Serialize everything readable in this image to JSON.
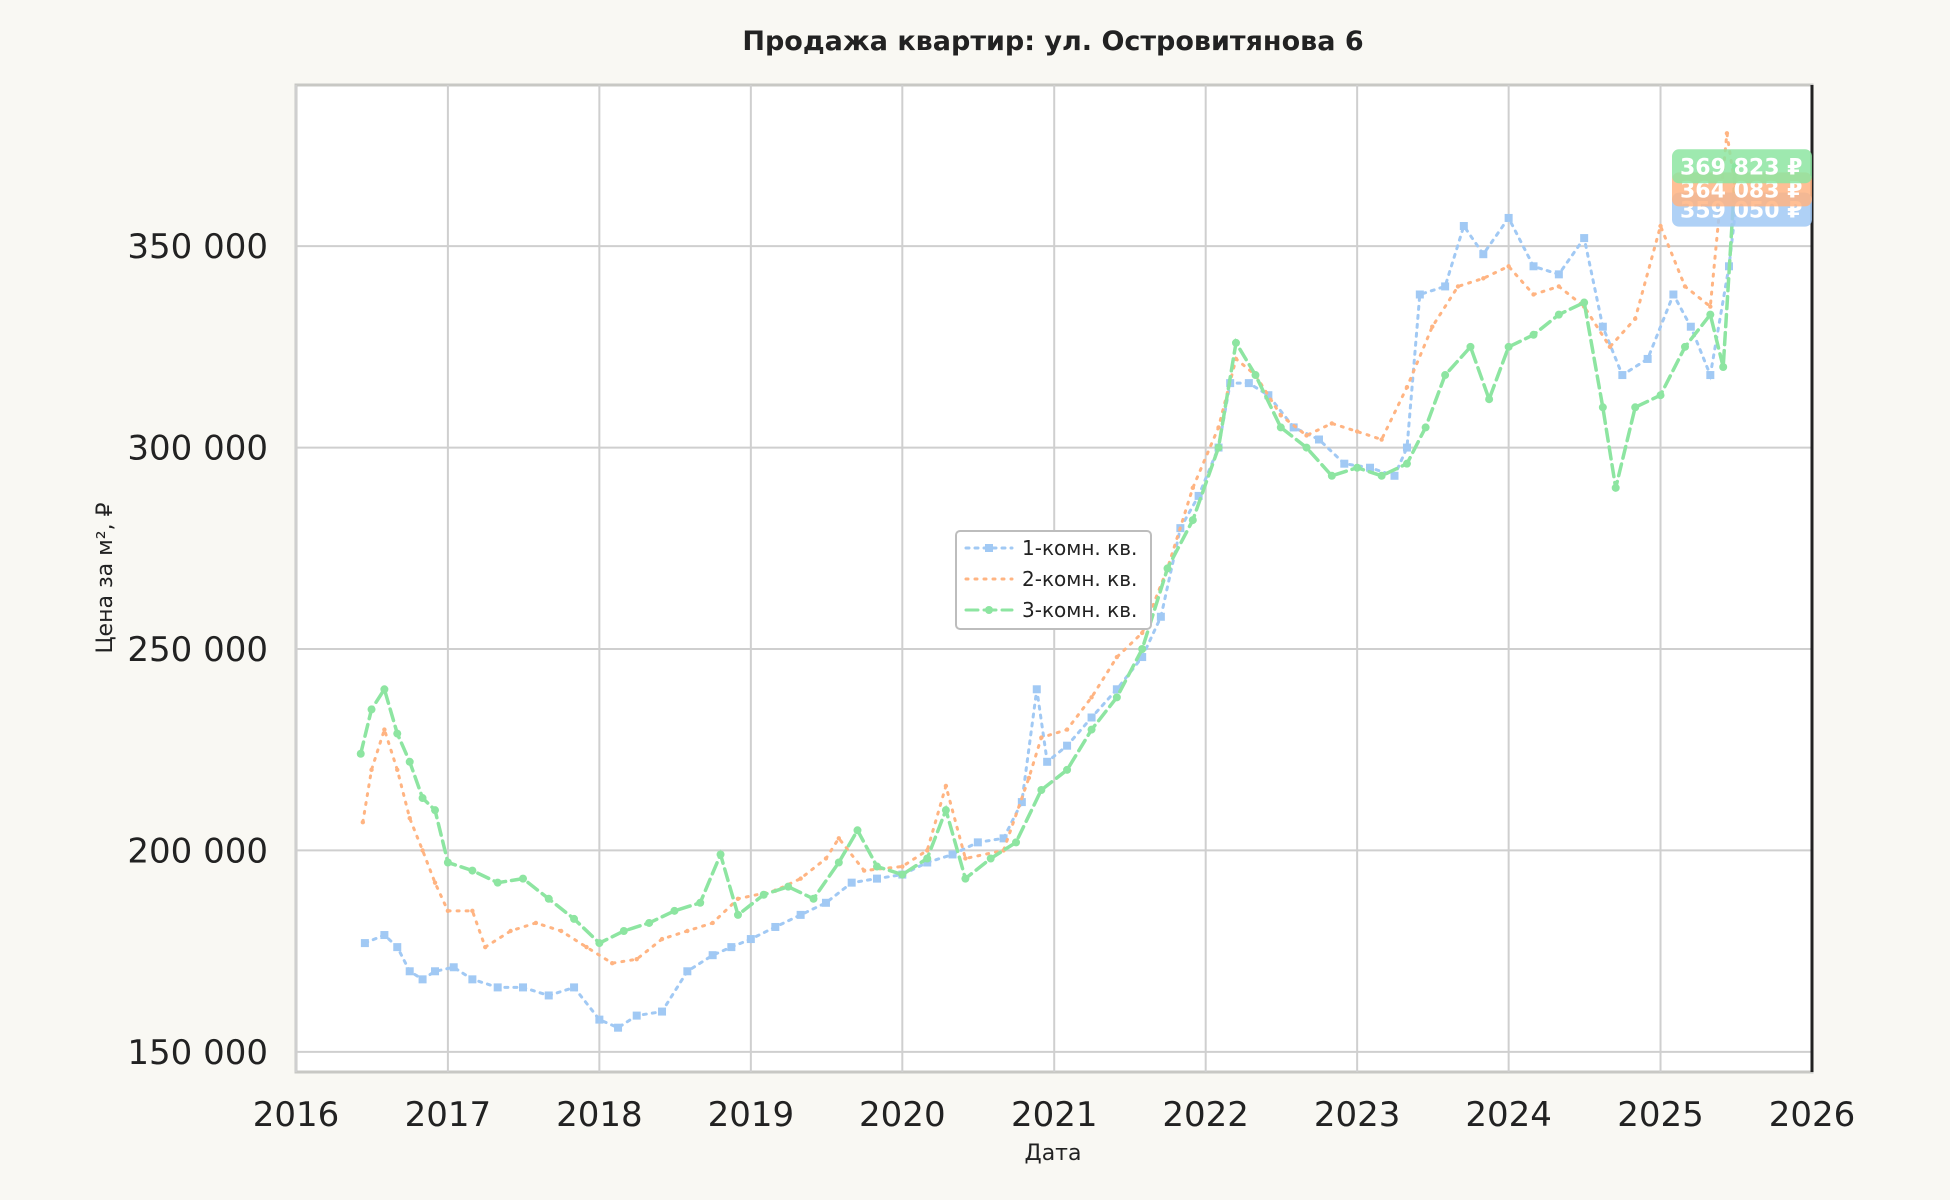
{
  "chart_data": {
    "type": "line",
    "title": "Продажа квартир: ул. Островитянова 6",
    "xlabel": "Дата",
    "ylabel": "Цена за м², ₽",
    "xlim": [
      "2016-01-01",
      "2026-01-01"
    ],
    "ylim": [
      145000,
      390000
    ],
    "x_ticks": [
      "2016",
      "2017",
      "2018",
      "2019",
      "2020",
      "2021",
      "2022",
      "2023",
      "2024",
      "2025",
      "2026"
    ],
    "y_ticks": [
      150000,
      200000,
      250000,
      300000,
      350000
    ],
    "y_tick_labels": [
      "150 000",
      "200 000",
      "250 000",
      "300 000",
      "350 000"
    ],
    "grid": true,
    "legend_position": "center",
    "series": [
      {
        "name": "1-комн. кв.",
        "color": "#a1c9f4",
        "style": "dotted-square",
        "end_label": "359 050 ₽",
        "points": [
          [
            "2016-06-15",
            177000
          ],
          [
            "2016-08-01",
            179000
          ],
          [
            "2016-09-01",
            176000
          ],
          [
            "2016-10-01",
            170000
          ],
          [
            "2016-11-01",
            168000
          ],
          [
            "2016-12-01",
            170000
          ],
          [
            "2017-01-15",
            171000
          ],
          [
            "2017-03-01",
            168000
          ],
          [
            "2017-05-01",
            166000
          ],
          [
            "2017-07-01",
            166000
          ],
          [
            "2017-09-01",
            164000
          ],
          [
            "2017-11-01",
            166000
          ],
          [
            "2018-01-01",
            158000
          ],
          [
            "2018-02-15",
            156000
          ],
          [
            "2018-04-01",
            159000
          ],
          [
            "2018-06-01",
            160000
          ],
          [
            "2018-08-01",
            170000
          ],
          [
            "2018-10-01",
            174000
          ],
          [
            "2018-11-15",
            176000
          ],
          [
            "2019-01-01",
            178000
          ],
          [
            "2019-03-01",
            181000
          ],
          [
            "2019-05-01",
            184000
          ],
          [
            "2019-07-01",
            187000
          ],
          [
            "2019-09-01",
            192000
          ],
          [
            "2019-11-01",
            193000
          ],
          [
            "2020-01-01",
            194000
          ],
          [
            "2020-03-01",
            197000
          ],
          [
            "2020-05-01",
            199000
          ],
          [
            "2020-07-01",
            202000
          ],
          [
            "2020-09-01",
            203000
          ],
          [
            "2020-10-15",
            212000
          ],
          [
            "2020-11-20",
            240000
          ],
          [
            "2020-12-15",
            222000
          ],
          [
            "2021-02-01",
            226000
          ],
          [
            "2021-04-01",
            233000
          ],
          [
            "2021-06-01",
            240000
          ],
          [
            "2021-08-01",
            248000
          ],
          [
            "2021-09-15",
            258000
          ],
          [
            "2021-11-01",
            280000
          ],
          [
            "2021-12-15",
            288000
          ],
          [
            "2022-02-01",
            300000
          ],
          [
            "2022-03-01",
            316000
          ],
          [
            "2022-04-15",
            316000
          ],
          [
            "2022-06-01",
            313000
          ],
          [
            "2022-08-01",
            305000
          ],
          [
            "2022-10-01",
            302000
          ],
          [
            "2022-12-01",
            296000
          ],
          [
            "2023-02-01",
            295000
          ],
          [
            "2023-04-01",
            293000
          ],
          [
            "2023-05-01",
            300000
          ],
          [
            "2023-06-01",
            338000
          ],
          [
            "2023-08-01",
            340000
          ],
          [
            "2023-09-15",
            355000
          ],
          [
            "2023-11-01",
            348000
          ],
          [
            "2024-01-01",
            357000
          ],
          [
            "2024-03-01",
            345000
          ],
          [
            "2024-05-01",
            343000
          ],
          [
            "2024-07-01",
            352000
          ],
          [
            "2024-08-15",
            330000
          ],
          [
            "2024-10-01",
            318000
          ],
          [
            "2024-12-01",
            322000
          ],
          [
            "2025-02-01",
            338000
          ],
          [
            "2025-03-15",
            330000
          ],
          [
            "2025-05-01",
            318000
          ],
          [
            "2025-06-15",
            345000
          ],
          [
            "2025-07-01",
            359050
          ]
        ]
      },
      {
        "name": "2-комн. кв.",
        "color": "#ffb482",
        "style": "dotted",
        "end_label": "364 083 ₽",
        "points": [
          [
            "2016-06-10",
            207000
          ],
          [
            "2016-07-01",
            220000
          ],
          [
            "2016-08-01",
            230000
          ],
          [
            "2016-09-01",
            220000
          ],
          [
            "2016-10-01",
            208000
          ],
          [
            "2016-11-01",
            200000
          ],
          [
            "2016-12-01",
            192000
          ],
          [
            "2017-01-01",
            185000
          ],
          [
            "2017-03-01",
            185000
          ],
          [
            "2017-04-01",
            176000
          ],
          [
            "2017-06-01",
            180000
          ],
          [
            "2017-08-01",
            182000
          ],
          [
            "2017-10-01",
            180000
          ],
          [
            "2017-12-01",
            176000
          ],
          [
            "2018-02-01",
            172000
          ],
          [
            "2018-04-01",
            173000
          ],
          [
            "2018-06-01",
            178000
          ],
          [
            "2018-08-01",
            180000
          ],
          [
            "2018-10-01",
            182000
          ],
          [
            "2018-12-01",
            188000
          ],
          [
            "2019-03-01",
            190000
          ],
          [
            "2019-05-01",
            193000
          ],
          [
            "2019-07-01",
            198000
          ],
          [
            "2019-08-01",
            203000
          ],
          [
            "2019-10-01",
            195000
          ],
          [
            "2020-01-01",
            196000
          ],
          [
            "2020-03-01",
            200000
          ],
          [
            "2020-04-15",
            216000
          ],
          [
            "2020-06-01",
            198000
          ],
          [
            "2020-09-01",
            200000
          ],
          [
            "2020-11-01",
            218000
          ],
          [
            "2020-12-01",
            228000
          ],
          [
            "2021-02-01",
            230000
          ],
          [
            "2021-04-01",
            238000
          ],
          [
            "2021-06-01",
            248000
          ],
          [
            "2021-08-01",
            254000
          ],
          [
            "2021-10-01",
            270000
          ],
          [
            "2021-12-01",
            290000
          ],
          [
            "2022-02-01",
            305000
          ],
          [
            "2022-03-15",
            322000
          ],
          [
            "2022-05-01",
            318000
          ],
          [
            "2022-07-01",
            308000
          ],
          [
            "2022-09-01",
            303000
          ],
          [
            "2022-11-01",
            306000
          ],
          [
            "2023-01-01",
            304000
          ],
          [
            "2023-03-01",
            302000
          ],
          [
            "2023-05-01",
            315000
          ],
          [
            "2023-07-01",
            330000
          ],
          [
            "2023-09-01",
            340000
          ],
          [
            "2023-11-01",
            342000
          ],
          [
            "2024-01-01",
            345000
          ],
          [
            "2024-03-01",
            338000
          ],
          [
            "2024-05-01",
            340000
          ],
          [
            "2024-07-01",
            335000
          ],
          [
            "2024-09-01",
            325000
          ],
          [
            "2024-11-01",
            332000
          ],
          [
            "2025-01-01",
            355000
          ],
          [
            "2025-03-01",
            340000
          ],
          [
            "2025-05-01",
            335000
          ],
          [
            "2025-06-10",
            378000
          ],
          [
            "2025-07-01",
            364083
          ]
        ]
      },
      {
        "name": "3-комн. кв.",
        "color": "#8de5a1",
        "style": "dashed-dot",
        "end_label": "369 823 ₽",
        "points": [
          [
            "2016-06-05",
            224000
          ],
          [
            "2016-07-01",
            235000
          ],
          [
            "2016-08-01",
            240000
          ],
          [
            "2016-09-01",
            229000
          ],
          [
            "2016-10-01",
            222000
          ],
          [
            "2016-11-01",
            213000
          ],
          [
            "2016-12-01",
            210000
          ],
          [
            "2017-01-01",
            197000
          ],
          [
            "2017-03-01",
            195000
          ],
          [
            "2017-05-01",
            192000
          ],
          [
            "2017-07-01",
            193000
          ],
          [
            "2017-09-01",
            188000
          ],
          [
            "2017-11-01",
            183000
          ],
          [
            "2018-01-01",
            177000
          ],
          [
            "2018-03-01",
            180000
          ],
          [
            "2018-05-01",
            182000
          ],
          [
            "2018-07-01",
            185000
          ],
          [
            "2018-09-01",
            187000
          ],
          [
            "2018-10-20",
            199000
          ],
          [
            "2018-12-01",
            184000
          ],
          [
            "2019-02-01",
            189000
          ],
          [
            "2019-04-01",
            191000
          ],
          [
            "2019-06-01",
            188000
          ],
          [
            "2019-08-01",
            197000
          ],
          [
            "2019-09-15",
            205000
          ],
          [
            "2019-11-01",
            196000
          ],
          [
            "2020-01-01",
            194000
          ],
          [
            "2020-03-01",
            198000
          ],
          [
            "2020-04-15",
            210000
          ],
          [
            "2020-06-01",
            193000
          ],
          [
            "2020-08-01",
            198000
          ],
          [
            "2020-10-01",
            202000
          ],
          [
            "2020-12-01",
            215000
          ],
          [
            "2021-02-01",
            220000
          ],
          [
            "2021-04-01",
            230000
          ],
          [
            "2021-06-01",
            238000
          ],
          [
            "2021-08-01",
            250000
          ],
          [
            "2021-10-01",
            270000
          ],
          [
            "2021-12-01",
            282000
          ],
          [
            "2022-02-01",
            300000
          ],
          [
            "2022-03-15",
            326000
          ],
          [
            "2022-05-01",
            318000
          ],
          [
            "2022-07-01",
            305000
          ],
          [
            "2022-09-01",
            300000
          ],
          [
            "2022-11-01",
            293000
          ],
          [
            "2023-01-01",
            295000
          ],
          [
            "2023-03-01",
            293000
          ],
          [
            "2023-05-01",
            296000
          ],
          [
            "2023-06-15",
            305000
          ],
          [
            "2023-08-01",
            318000
          ],
          [
            "2023-10-01",
            325000
          ],
          [
            "2023-11-15",
            312000
          ],
          [
            "2024-01-01",
            325000
          ],
          [
            "2024-03-01",
            328000
          ],
          [
            "2024-05-01",
            333000
          ],
          [
            "2024-07-01",
            336000
          ],
          [
            "2024-08-15",
            310000
          ],
          [
            "2024-09-15",
            290000
          ],
          [
            "2024-11-01",
            310000
          ],
          [
            "2025-01-01",
            313000
          ],
          [
            "2025-03-01",
            325000
          ],
          [
            "2025-05-01",
            333000
          ],
          [
            "2025-06-01",
            320000
          ],
          [
            "2025-07-01",
            369823
          ]
        ]
      }
    ]
  }
}
